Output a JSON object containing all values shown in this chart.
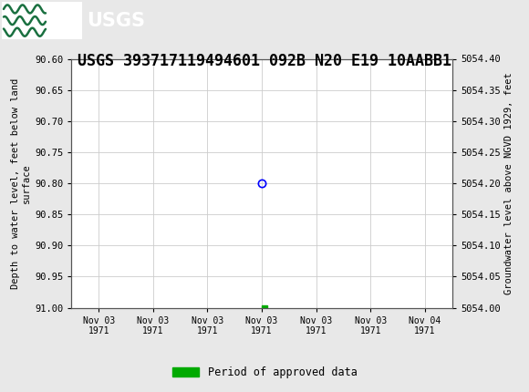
{
  "title": "USGS 393717119494601 092B N20 E19 10AABB1",
  "title_fontsize": 12,
  "header_color": "#1a7040",
  "ylabel_left": "Depth to water level, feet below land\nsurface",
  "ylabel_right": "Groundwater level above NGVD 1929, feet",
  "ylim_left": [
    91.0,
    90.6
  ],
  "ylim_right": [
    5054.0,
    5054.4
  ],
  "yticks_left": [
    90.6,
    90.65,
    90.7,
    90.75,
    90.8,
    90.85,
    90.9,
    90.95,
    91.0
  ],
  "yticks_right": [
    5054.4,
    5054.35,
    5054.3,
    5054.25,
    5054.2,
    5054.15,
    5054.1,
    5054.05,
    5054.0
  ],
  "grid_color": "#cccccc",
  "background_color": "#e8e8e8",
  "plot_bg": "#ffffff",
  "data_point_x": 3.0,
  "data_point_y": 90.8,
  "data_point_color": "blue",
  "data_point_marker": "o",
  "approved_point_x": 3.05,
  "approved_point_y": 91.0,
  "approved_point_color": "#00aa00",
  "approved_point_marker": "s",
  "legend_label": "Period of approved data",
  "legend_color": "#00aa00",
  "font_family": "monospace",
  "xtick_labels": [
    "Nov 03\n1971",
    "Nov 03\n1971",
    "Nov 03\n1971",
    "Nov 03\n1971",
    "Nov 03\n1971",
    "Nov 03\n1971",
    "Nov 04\n1971"
  ],
  "xlim": [
    -0.5,
    6.5
  ]
}
